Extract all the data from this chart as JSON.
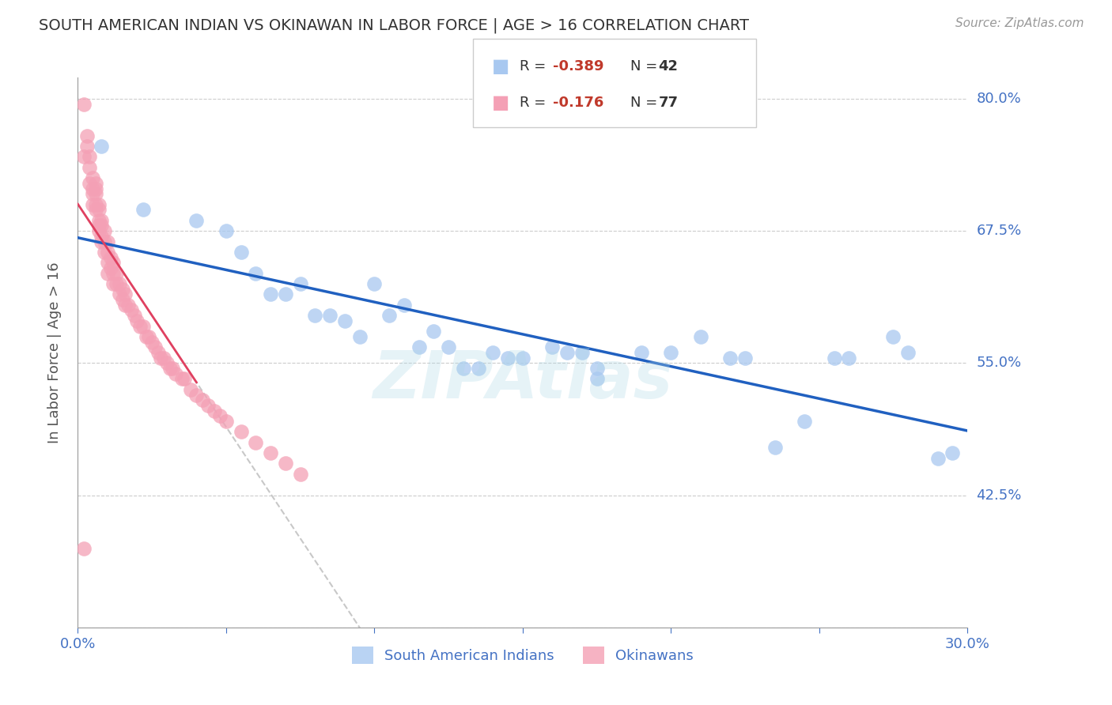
{
  "title": "SOUTH AMERICAN INDIAN VS OKINAWAN IN LABOR FORCE | AGE > 16 CORRELATION CHART",
  "source": "Source: ZipAtlas.com",
  "ylabel": "In Labor Force | Age > 16",
  "xlim": [
    0.0,
    0.3
  ],
  "ylim": [
    0.3,
    0.82
  ],
  "xtick_positions": [
    0.0,
    0.05,
    0.1,
    0.15,
    0.2,
    0.25,
    0.3
  ],
  "xticklabels": [
    "0.0%",
    "",
    "",
    "",
    "",
    "",
    "30.0%"
  ],
  "ytick_positions": [
    0.3,
    0.425,
    0.55,
    0.675,
    0.8
  ],
  "yticklabels": [
    "30.0%",
    "42.5%",
    "55.0%",
    "67.5%",
    "80.0%"
  ],
  "label_blue": "South American Indians",
  "label_pink": "Okinawans",
  "blue_color": "#A8C8F0",
  "pink_color": "#F4A0B5",
  "trendline_blue_color": "#2060C0",
  "trendline_pink_color": "#E04060",
  "trendline_gray_color": "#C8C8C8",
  "watermark": "ZIPAtlas",
  "legend_blue_r": "R = ",
  "legend_blue_rv": "-0.389",
  "legend_blue_n": "N = ",
  "legend_blue_nv": "42",
  "legend_pink_r": "R = ",
  "legend_pink_rv": "-0.176",
  "legend_pink_n": "N = ",
  "legend_pink_nv": "77",
  "blue_x": [
    0.008,
    0.022,
    0.04,
    0.05,
    0.055,
    0.06,
    0.065,
    0.07,
    0.075,
    0.08,
    0.085,
    0.09,
    0.095,
    0.1,
    0.105,
    0.11,
    0.115,
    0.12,
    0.125,
    0.13,
    0.135,
    0.14,
    0.145,
    0.15,
    0.16,
    0.165,
    0.17,
    0.175,
    0.175,
    0.19,
    0.2,
    0.21,
    0.22,
    0.225,
    0.235,
    0.245,
    0.255,
    0.26,
    0.275,
    0.28,
    0.29,
    0.295
  ],
  "blue_y": [
    0.755,
    0.695,
    0.685,
    0.675,
    0.655,
    0.635,
    0.615,
    0.615,
    0.625,
    0.595,
    0.595,
    0.59,
    0.575,
    0.625,
    0.595,
    0.605,
    0.565,
    0.58,
    0.565,
    0.545,
    0.545,
    0.56,
    0.555,
    0.555,
    0.565,
    0.56,
    0.56,
    0.545,
    0.535,
    0.56,
    0.56,
    0.575,
    0.555,
    0.555,
    0.47,
    0.495,
    0.555,
    0.555,
    0.575,
    0.56,
    0.46,
    0.465
  ],
  "pink_x": [
    0.002,
    0.002,
    0.003,
    0.003,
    0.004,
    0.004,
    0.004,
    0.005,
    0.005,
    0.005,
    0.005,
    0.006,
    0.006,
    0.006,
    0.006,
    0.006,
    0.007,
    0.007,
    0.007,
    0.007,
    0.007,
    0.008,
    0.008,
    0.008,
    0.008,
    0.009,
    0.009,
    0.009,
    0.01,
    0.01,
    0.01,
    0.01,
    0.011,
    0.011,
    0.012,
    0.012,
    0.012,
    0.013,
    0.013,
    0.014,
    0.014,
    0.015,
    0.015,
    0.016,
    0.016,
    0.017,
    0.018,
    0.019,
    0.02,
    0.021,
    0.022,
    0.023,
    0.024,
    0.025,
    0.026,
    0.027,
    0.028,
    0.029,
    0.03,
    0.031,
    0.032,
    0.033,
    0.035,
    0.036,
    0.038,
    0.04,
    0.042,
    0.044,
    0.046,
    0.048,
    0.05,
    0.055,
    0.06,
    0.065,
    0.07,
    0.075,
    0.002
  ],
  "pink_y": [
    0.795,
    0.745,
    0.765,
    0.755,
    0.745,
    0.735,
    0.72,
    0.725,
    0.715,
    0.71,
    0.7,
    0.72,
    0.715,
    0.71,
    0.7,
    0.695,
    0.7,
    0.695,
    0.685,
    0.68,
    0.675,
    0.685,
    0.68,
    0.67,
    0.665,
    0.675,
    0.665,
    0.655,
    0.665,
    0.655,
    0.645,
    0.635,
    0.65,
    0.64,
    0.645,
    0.635,
    0.625,
    0.635,
    0.625,
    0.625,
    0.615,
    0.62,
    0.61,
    0.615,
    0.605,
    0.605,
    0.6,
    0.595,
    0.59,
    0.585,
    0.585,
    0.575,
    0.575,
    0.57,
    0.565,
    0.56,
    0.555,
    0.555,
    0.55,
    0.545,
    0.545,
    0.54,
    0.535,
    0.535,
    0.525,
    0.52,
    0.515,
    0.51,
    0.505,
    0.5,
    0.495,
    0.485,
    0.475,
    0.465,
    0.455,
    0.445,
    0.375
  ]
}
